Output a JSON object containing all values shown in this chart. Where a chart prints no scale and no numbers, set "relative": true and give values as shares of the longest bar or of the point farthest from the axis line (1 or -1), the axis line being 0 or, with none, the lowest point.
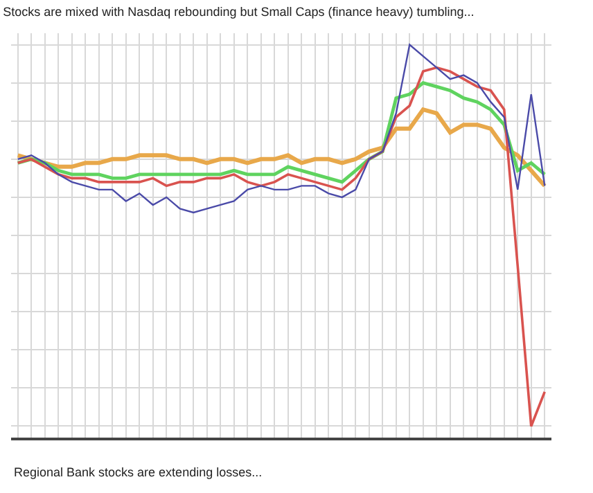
{
  "chart_data": {
    "type": "line",
    "title": "Stocks are mixed with Nasdaq rebounding but Small Caps (finance heavy) tumbling...",
    "annotations": [
      "Regional Bank stocks are extending losses..."
    ],
    "relative": true,
    "grid": true,
    "marker": "none",
    "line_style": "solid",
    "categories": [
      null,
      null,
      null,
      null,
      null,
      null,
      null,
      null,
      null,
      null,
      null,
      null,
      null,
      null,
      null,
      null,
      null,
      null,
      null,
      null,
      null,
      null,
      null,
      null,
      null,
      null,
      null,
      null,
      null,
      null,
      null,
      null,
      null,
      null,
      null,
      null,
      null,
      null,
      null,
      null
    ],
    "series": [
      {
        "color": "#e8a84a",
        "values": [
          0.71,
          0.7,
          0.69,
          0.68,
          0.68,
          0.69,
          0.69,
          0.7,
          0.7,
          0.71,
          0.71,
          0.71,
          0.7,
          0.7,
          0.69,
          0.7,
          0.7,
          0.69,
          0.7,
          0.7,
          0.71,
          0.69,
          0.7,
          0.7,
          0.69,
          0.7,
          0.72,
          0.73,
          0.78,
          0.78,
          0.83,
          0.82,
          0.77,
          0.79,
          0.79,
          0.78,
          0.73,
          0.71,
          0.67,
          0.63
        ]
      },
      {
        "color": "#5fd35f",
        "values": [
          0.69,
          0.7,
          0.69,
          0.67,
          0.66,
          0.66,
          0.66,
          0.65,
          0.65,
          0.66,
          0.66,
          0.66,
          0.66,
          0.66,
          0.66,
          0.66,
          0.67,
          0.66,
          0.66,
          0.66,
          0.68,
          0.67,
          0.66,
          0.65,
          0.64,
          0.67,
          0.7,
          0.72,
          0.86,
          0.87,
          0.9,
          0.89,
          0.88,
          0.86,
          0.85,
          0.83,
          0.79,
          0.67,
          0.69,
          0.66
        ]
      },
      {
        "color": "#d9534f",
        "values": [
          0.69,
          0.7,
          0.68,
          0.66,
          0.65,
          0.65,
          0.64,
          0.64,
          0.64,
          0.64,
          0.65,
          0.63,
          0.64,
          0.64,
          0.65,
          0.65,
          0.66,
          0.64,
          0.63,
          0.64,
          0.66,
          0.65,
          0.64,
          0.63,
          0.62,
          0.65,
          0.7,
          0.72,
          0.81,
          0.84,
          0.93,
          0.94,
          0.93,
          0.91,
          0.89,
          0.88,
          0.83,
          0.42,
          0,
          0.09
        ]
      },
      {
        "color": "#4a4aa8",
        "values": [
          0.7,
          0.71,
          0.69,
          0.66,
          0.64,
          0.63,
          0.62,
          0.62,
          0.59,
          0.61,
          0.58,
          0.6,
          0.57,
          0.56,
          0.57,
          0.58,
          0.59,
          0.62,
          0.63,
          0.62,
          0.62,
          0.63,
          0.63,
          0.61,
          0.6,
          0.62,
          0.7,
          0.72,
          0.82,
          1.0,
          0.97,
          0.94,
          0.91,
          0.92,
          0.9,
          0.85,
          0.81,
          0.62,
          0.87,
          0.63
        ]
      }
    ]
  }
}
